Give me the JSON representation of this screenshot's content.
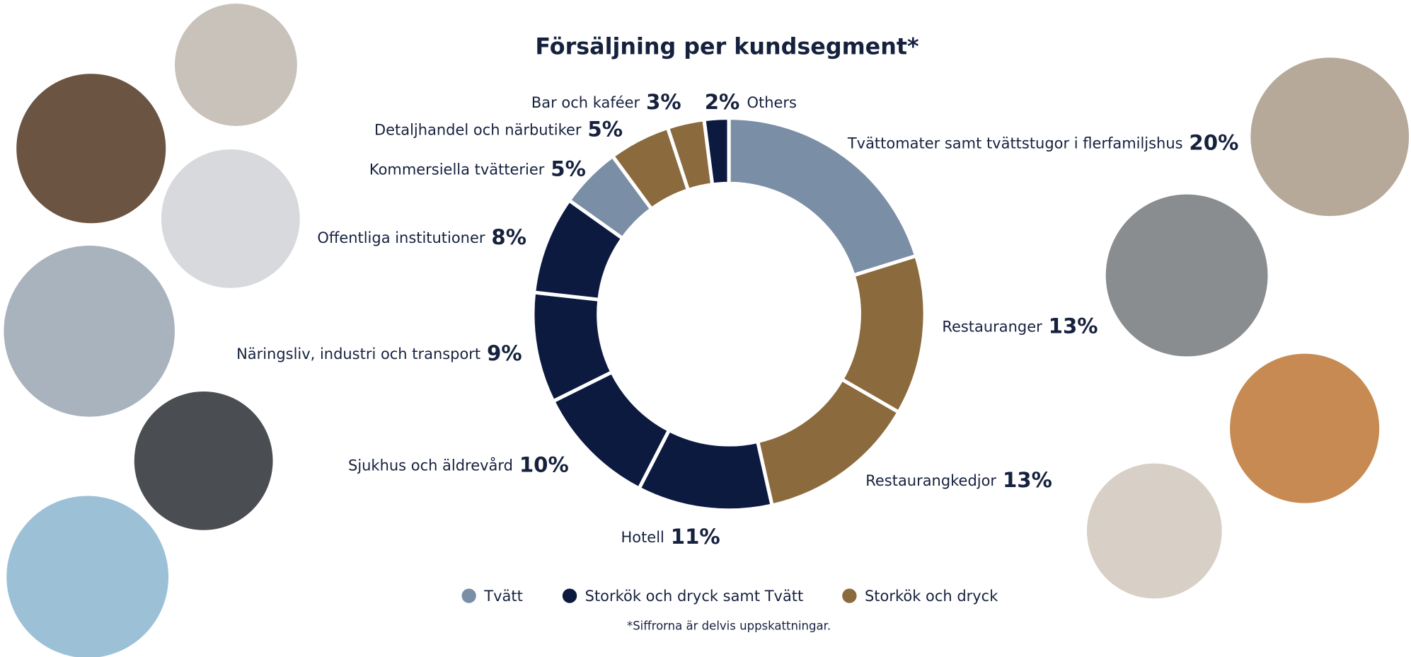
{
  "chart_data": {
    "type": "donut",
    "title": "Försäljning per kundsegment*",
    "categories": [
      "Tvättomater samt tvättstugor i flerfamiljshus",
      "Restauranger",
      "Restaurangkedjor",
      "Hotell",
      "Sjukhus och äldrevård",
      "Näringsliv, industri och transport",
      "Offentliga institutioner",
      "Kommersiella tvätterier",
      "Detaljhandel och närbutiker",
      "Bar och kaféer",
      "Others"
    ],
    "values": [
      20,
      13,
      13,
      11,
      10,
      9,
      8,
      5,
      5,
      3,
      2
    ],
    "value_labels": [
      "20%",
      "13%",
      "13%",
      "11%",
      "10%",
      "9%",
      "8%",
      "5%",
      "5%",
      "3%",
      "2%"
    ],
    "colors": [
      "#7a8ea5",
      "#8b6a3e",
      "#8b6a3e",
      "#0d1a40",
      "#0d1a40",
      "#0d1a40",
      "#0d1a40",
      "#7a8ea5",
      "#8b6a3e",
      "#8b6a3e",
      "#0d1a40"
    ],
    "legend": [
      {
        "name": "Tvätt",
        "color": "#7a8ea5"
      },
      {
        "name": "Storkök och dryck samt Tvätt",
        "color": "#0d1a40"
      },
      {
        "name": "Storkök och dryck",
        "color": "#8b6a3e"
      }
    ],
    "footnote": "*Siffrorna är delvis uppskattningar."
  }
}
